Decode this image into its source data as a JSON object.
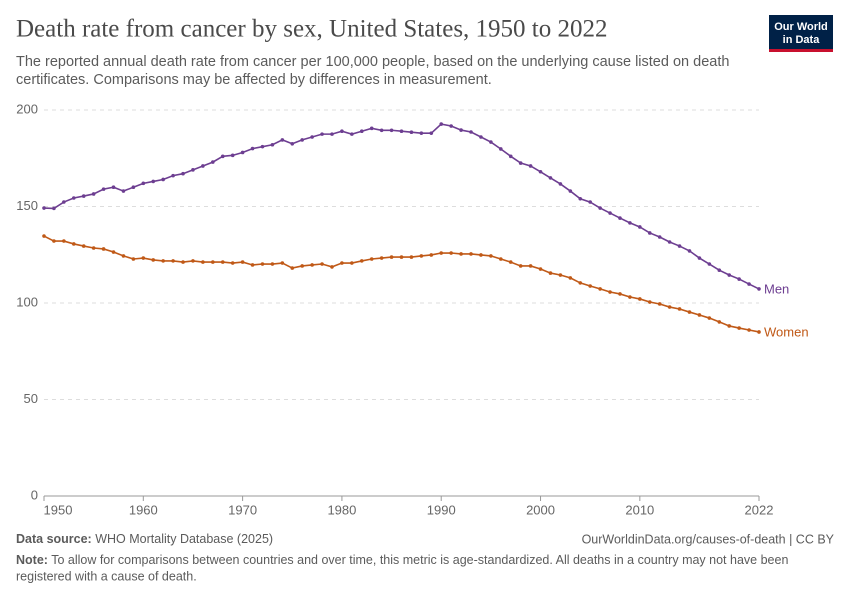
{
  "header": {
    "title": "Death rate from cancer by sex, United States, 1950 to 2022",
    "subtitle": [
      "The reported annual death rate from cancer per 100,000 people, based on the underlying cause listed on death",
      "certificates. Comparisons may be affected by differences in measurement."
    ],
    "logo": [
      "Our World",
      "in Data"
    ]
  },
  "chart_data": {
    "type": "line",
    "x": [
      1950,
      1951,
      1952,
      1953,
      1954,
      1955,
      1956,
      1957,
      1958,
      1959,
      1960,
      1961,
      1962,
      1963,
      1964,
      1965,
      1966,
      1967,
      1968,
      1969,
      1970,
      1971,
      1972,
      1973,
      1974,
      1975,
      1976,
      1977,
      1978,
      1979,
      1980,
      1981,
      1982,
      1983,
      1984,
      1985,
      1986,
      1987,
      1988,
      1989,
      1990,
      1991,
      1992,
      1993,
      1994,
      1995,
      1996,
      1997,
      1998,
      1999,
      2000,
      2001,
      2002,
      2003,
      2004,
      2005,
      2006,
      2007,
      2008,
      2009,
      2010,
      2011,
      2012,
      2013,
      2014,
      2015,
      2016,
      2017,
      2018,
      2019,
      2020,
      2021,
      2022
    ],
    "series": [
      {
        "name": "Men",
        "color": "#6d3e91",
        "values": [
          149.2,
          149,
          152.3,
          154.4,
          155.4,
          156.5,
          159,
          160,
          158,
          160,
          162,
          163,
          164,
          166,
          167,
          169,
          171,
          173,
          176,
          176.5,
          178,
          180,
          181,
          182,
          184.5,
          182.5,
          184.5,
          186,
          187.5,
          187.5,
          189,
          187.5,
          189,
          190.5,
          189.5,
          189.5,
          189,
          188.5,
          188,
          188,
          192.7,
          191.7,
          189.6,
          188.6,
          186,
          183.4,
          179.8,
          176,
          172.5,
          171,
          168,
          164.8,
          161.7,
          158,
          154,
          152.3,
          149.2,
          146.6,
          144,
          141.5,
          139.4,
          136.3,
          134.2,
          131.6,
          129.5,
          127,
          123.3,
          120.2,
          117,
          114.5,
          112.4,
          109.8,
          107.3
        ]
      },
      {
        "name": "Women",
        "color": "#c05917",
        "values": [
          134.7,
          132.1,
          132.1,
          130.6,
          129.5,
          128.5,
          128,
          126.4,
          124.4,
          122.8,
          123.3,
          122.3,
          121.8,
          121.8,
          121.2,
          121.8,
          121.2,
          121.2,
          121.2,
          120.7,
          121.2,
          119.7,
          120.2,
          120.2,
          120.7,
          118.1,
          119.2,
          119.7,
          120.2,
          118.7,
          120.7,
          120.7,
          121.8,
          122.8,
          123.3,
          123.8,
          123.8,
          123.8,
          124.4,
          124.9,
          125.9,
          125.9,
          125.4,
          125.4,
          124.9,
          124.4,
          122.8,
          121.2,
          119.2,
          119.2,
          117.6,
          115.5,
          114.5,
          113,
          110.4,
          108.8,
          107.3,
          105.7,
          104.7,
          103.1,
          102.1,
          100.5,
          99.5,
          97.9,
          96.9,
          95.3,
          93.8,
          92.2,
          90.2,
          88.1,
          87,
          86,
          85
        ]
      }
    ],
    "xlim": [
      1950,
      2022
    ],
    "xticks": [
      1950,
      1960,
      1970,
      1980,
      1990,
      2000,
      2010,
      2022
    ],
    "ylim": [
      0,
      200
    ],
    "yticks": [
      0,
      50,
      100,
      150,
      200
    ],
    "grid": true
  },
  "footer": {
    "source_label": "Data source:",
    "source": "WHO Mortality Database (2025)",
    "url": "OurWorldinData.org/causes-of-death | CC BY",
    "note_label": "Note:",
    "note": [
      "To allow for comparisons between countries and over time, this metric is age-standardized. All deaths in a country may not have been",
      "registered with a cause of death."
    ]
  }
}
